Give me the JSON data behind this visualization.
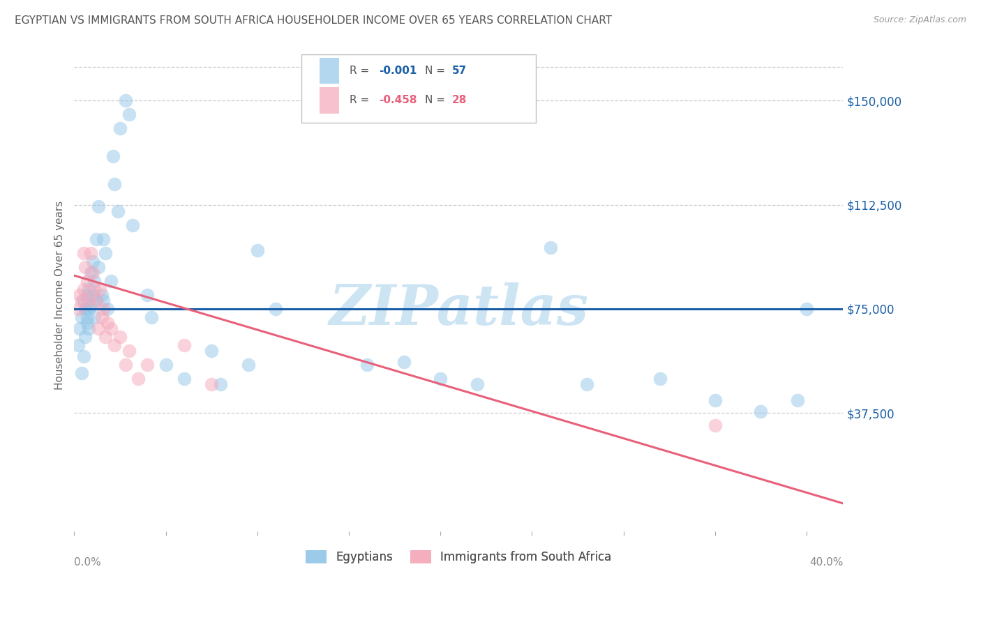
{
  "title": "EGYPTIAN VS IMMIGRANTS FROM SOUTH AFRICA HOUSEHOLDER INCOME OVER 65 YEARS CORRELATION CHART",
  "source": "Source: ZipAtlas.com",
  "ylabel": "Householder Income Over 65 years",
  "xlim": [
    0.0,
    0.42
  ],
  "ylim": [
    -5000,
    165000
  ],
  "legend_label_bottom_blue": "Egyptians",
  "legend_label_bottom_pink": "Immigrants from South Africa",
  "blue_color": "#93c6e8",
  "pink_color": "#f4a7b9",
  "blue_line_color": "#1a5fa8",
  "pink_line_color": "#e8607a",
  "watermark": "ZIPatlas",
  "grid_color": "#cccccc",
  "background_color": "#ffffff",
  "watermark_color": "#cde4f3",
  "blue_points_x": [
    0.002,
    0.003,
    0.004,
    0.004,
    0.005,
    0.005,
    0.006,
    0.006,
    0.007,
    0.007,
    0.007,
    0.008,
    0.008,
    0.008,
    0.009,
    0.009,
    0.01,
    0.01,
    0.011,
    0.011,
    0.012,
    0.012,
    0.013,
    0.013,
    0.015,
    0.016,
    0.016,
    0.017,
    0.018,
    0.02,
    0.021,
    0.022,
    0.024,
    0.025,
    0.028,
    0.03,
    0.032,
    0.04,
    0.042,
    0.05,
    0.06,
    0.075,
    0.08,
    0.095,
    0.1,
    0.11,
    0.16,
    0.18,
    0.2,
    0.22,
    0.26,
    0.28,
    0.32,
    0.35,
    0.375,
    0.395,
    0.4
  ],
  "blue_points_y": [
    62000,
    68000,
    52000,
    72000,
    58000,
    78000,
    65000,
    75000,
    70000,
    80000,
    72000,
    75000,
    68000,
    82000,
    76000,
    88000,
    80000,
    92000,
    72000,
    85000,
    78000,
    100000,
    90000,
    112000,
    80000,
    100000,
    78000,
    95000,
    75000,
    85000,
    130000,
    120000,
    110000,
    140000,
    150000,
    145000,
    105000,
    80000,
    72000,
    55000,
    50000,
    60000,
    48000,
    55000,
    96000,
    75000,
    55000,
    56000,
    50000,
    48000,
    97000,
    48000,
    50000,
    42000,
    38000,
    42000,
    75000
  ],
  "pink_points_x": [
    0.002,
    0.003,
    0.004,
    0.005,
    0.005,
    0.006,
    0.007,
    0.008,
    0.009,
    0.01,
    0.011,
    0.012,
    0.013,
    0.014,
    0.015,
    0.016,
    0.017,
    0.018,
    0.02,
    0.022,
    0.025,
    0.028,
    0.03,
    0.035,
    0.04,
    0.06,
    0.075,
    0.35
  ],
  "pink_points_y": [
    75000,
    80000,
    78000,
    82000,
    95000,
    90000,
    85000,
    78000,
    95000,
    88000,
    82000,
    78000,
    68000,
    82000,
    72000,
    75000,
    65000,
    70000,
    68000,
    62000,
    65000,
    55000,
    60000,
    50000,
    55000,
    62000,
    48000,
    33000
  ],
  "blue_line_x": [
    0.0,
    0.42
  ],
  "blue_line_y": [
    75000,
    75000
  ],
  "pink_line_x": [
    0.0,
    0.42
  ],
  "pink_line_y": [
    87000,
    5000
  ],
  "ytick_vals": [
    37500,
    75000,
    112500,
    150000
  ],
  "ytick_labels": [
    "$37,500",
    "$75,000",
    "$112,500",
    "$150,000"
  ],
  "xtick_positions": [
    0.0,
    0.05,
    0.1,
    0.15,
    0.2,
    0.25,
    0.3,
    0.35,
    0.4
  ]
}
